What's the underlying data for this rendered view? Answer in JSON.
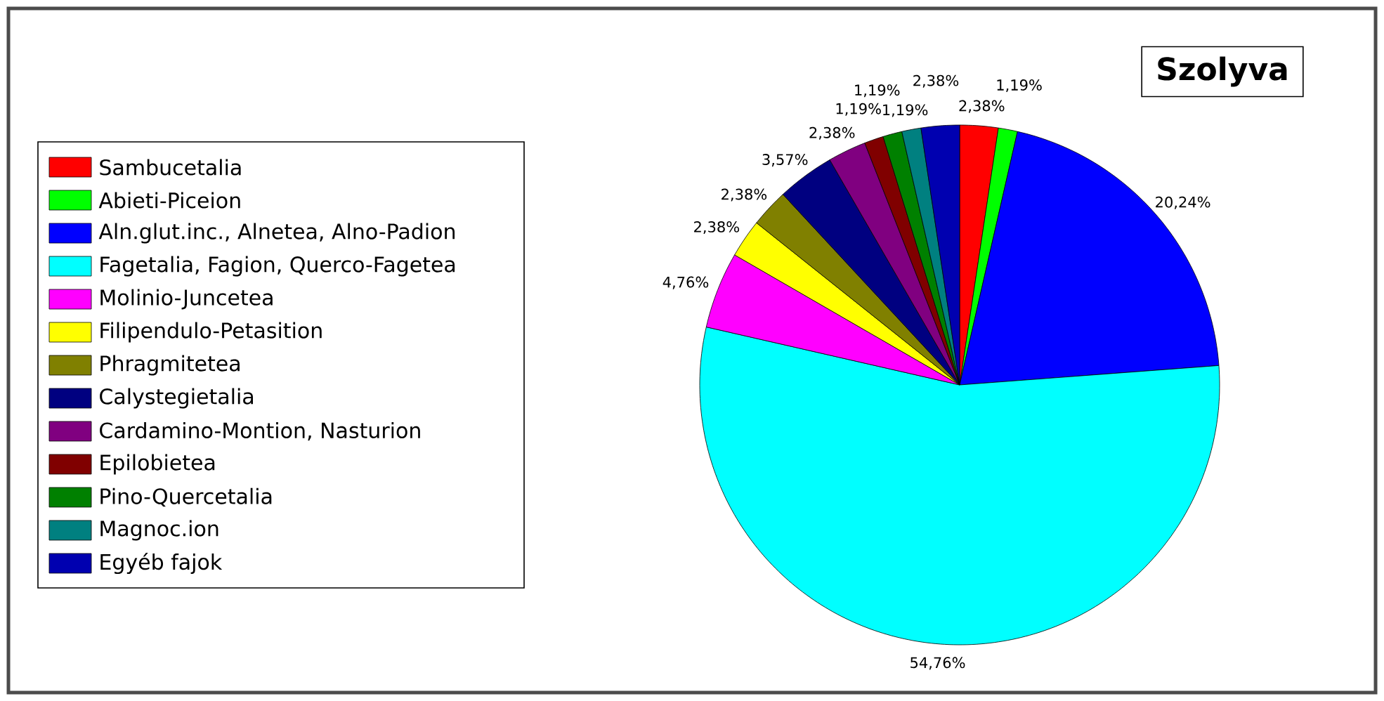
{
  "chart_data": {
    "type": "pie",
    "title": "Szolyva",
    "categories": [
      "Sambucetalia",
      "Abieti-Piceion",
      "Aln.glut.inc., Alnetea, Alno-Padion",
      "Fagetalia, Fagion, Querco-Fagetea",
      "Molinio-Juncetea",
      "Filipendulo-Petasition",
      "Phragmitetea",
      "Calystegietalia",
      "Cardamino-Montion, Nasturion",
      "Epilobietea",
      "Pino-Quercetalia",
      "Magnoc.ion",
      "Egyéb fajok"
    ],
    "values": [
      2.38,
      1.19,
      20.24,
      54.76,
      4.76,
      2.38,
      2.38,
      3.57,
      2.38,
      1.19,
      1.19,
      1.19,
      2.38
    ],
    "value_labels": [
      "2,38%",
      "1,19%",
      "20,24%",
      "54,76%",
      "4,76%",
      "2,38%",
      "2,38%",
      "3,57%",
      "2,38%",
      "1,19%",
      "1,19%",
      "1,19%",
      "2,38%"
    ],
    "colors": [
      "#ff0000",
      "#00ff00",
      "#0000ff",
      "#00ffff",
      "#ff00ff",
      "#ffff00",
      "#808000",
      "#000080",
      "#800080",
      "#800000",
      "#008000",
      "#008080",
      "#0000b0"
    ],
    "legend": "left"
  }
}
